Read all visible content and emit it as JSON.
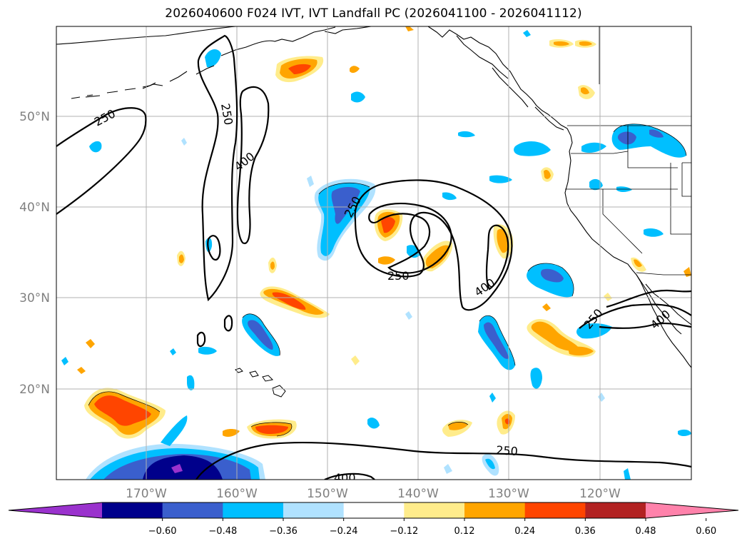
{
  "title": "2026040600 F024 IVT, IVT Landfall PC (2026041100 - 2026041112)",
  "axes": {
    "lon_ticks": [
      "170°W",
      "160°W",
      "150°W",
      "140°W",
      "130°W",
      "120°W"
    ],
    "lat_ticks": [
      "50°N",
      "40°N",
      "30°N",
      "20°N"
    ]
  },
  "contour_labels": {
    "c250a": "250",
    "c250b": "250",
    "c250c": "250",
    "c250d": "250",
    "c250e": "250",
    "c250f": "250",
    "c400a": "400",
    "c400b": "400",
    "c400c": "400",
    "c400d": "400"
  },
  "colorbar": {
    "colors": [
      "#9a32cd",
      "#00008b",
      "#3a5fcd",
      "#00bfff",
      "#b0e2ff",
      "#ffffff",
      "#ffec8b",
      "#ffa500",
      "#ff4500",
      "#b22222",
      "#ff82ab"
    ],
    "tick_labels": [
      "−0.60",
      "−0.48",
      "−0.36",
      "−0.24",
      "−0.12",
      "0.12",
      "0.24",
      "0.36",
      "0.48",
      "0.60"
    ]
  }
}
